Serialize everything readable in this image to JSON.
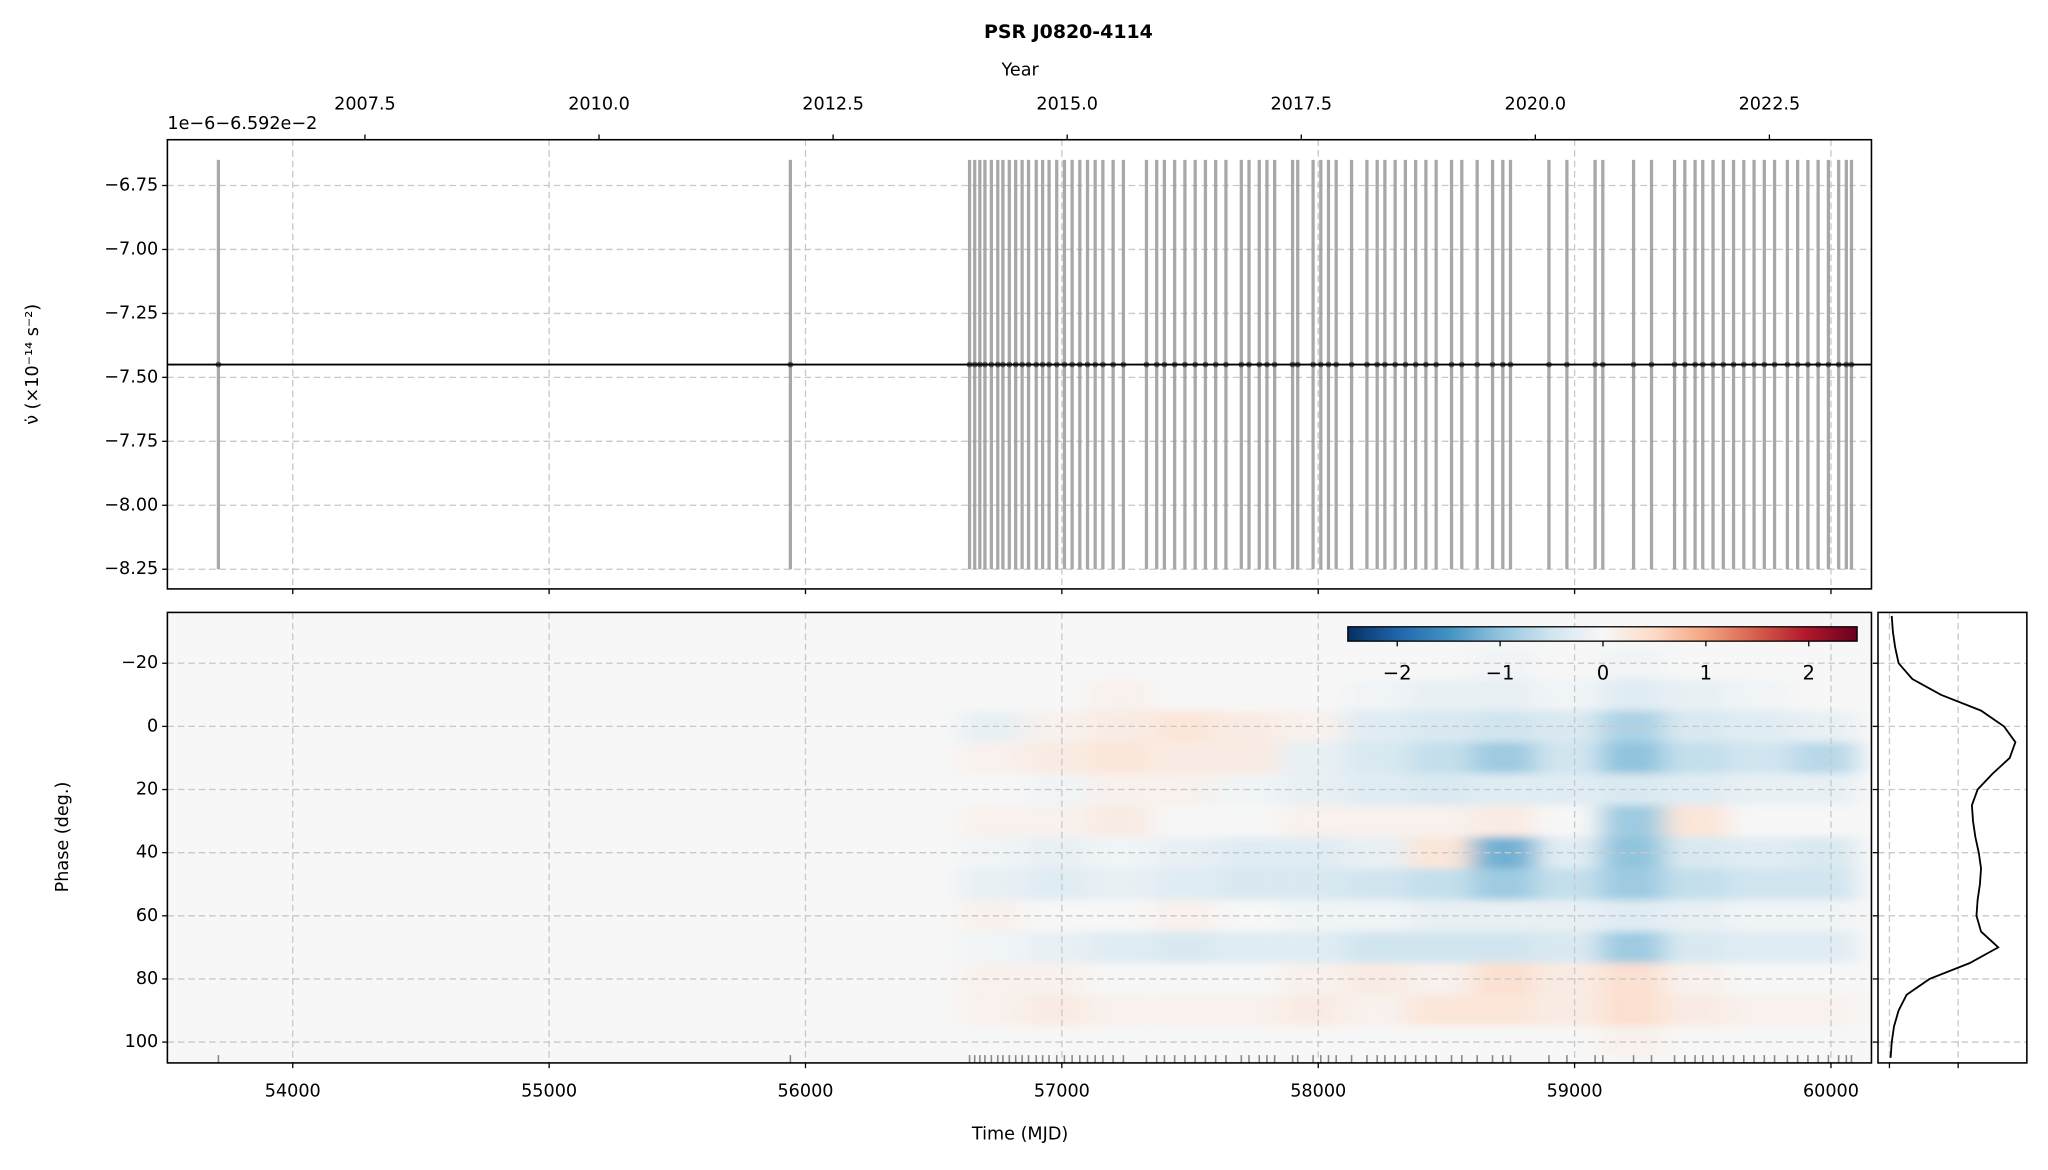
{
  "chart_data": [
    {
      "type": "errorbar",
      "title": "PSR J0820-4114",
      "x2label": "Year",
      "x2lim": [
        2005.39,
        2023.59
      ],
      "x2ticks": [
        2007.5,
        2010.0,
        2012.5,
        2015.0,
        2017.5,
        2020.0,
        2022.5
      ],
      "offset_text": "1e−6−6.592e−2",
      "ylabel": "ν̇ (×10⁻¹⁴ s⁻²)",
      "xlim": [
        53511,
        60158
      ],
      "xticks": [
        54000,
        55000,
        56000,
        57000,
        58000,
        59000,
        60000
      ],
      "ylim": [
        -8.327,
        -6.571
      ],
      "yticks": [
        {
          "value": -6.75,
          "label": "−6.75"
        },
        {
          "value": -7.0,
          "label": "−7.00"
        },
        {
          "value": -7.25,
          "label": "−7.25"
        },
        {
          "value": -7.5,
          "label": "−7.50"
        },
        {
          "value": -7.75,
          "label": "−7.75"
        },
        {
          "value": -8.0,
          "label": "−8.00"
        },
        {
          "value": -8.25,
          "label": "−8.25"
        }
      ],
      "grid": true,
      "color": "#999999",
      "fit": -7.45,
      "fit_color": "#000000",
      "x": [
        53710,
        55941,
        56640,
        56660,
        56680,
        56700,
        56725,
        56750,
        56770,
        56795,
        56820,
        56845,
        56870,
        56900,
        56925,
        56950,
        56980,
        57010,
        57040,
        57070,
        57100,
        57130,
        57160,
        57200,
        57240,
        57330,
        57370,
        57400,
        57440,
        57480,
        57520,
        57560,
        57600,
        57640,
        57700,
        57730,
        57770,
        57800,
        57830,
        57900,
        57920,
        57980,
        58010,
        58040,
        58070,
        58130,
        58190,
        58230,
        58260,
        58300,
        58340,
        58380,
        58420,
        58460,
        58520,
        58560,
        58620,
        58680,
        58720,
        58750,
        58900,
        58970,
        59080,
        59110,
        59230,
        59300,
        59390,
        59430,
        59470,
        59500,
        59540,
        59580,
        59620,
        59660,
        59700,
        59740,
        59780,
        59830,
        59870,
        59910,
        59950,
        59990,
        60030,
        60060,
        60080
      ],
      "values": [
        -7.45,
        -7.45,
        -7.45,
        -7.45,
        -7.45,
        -7.45,
        -7.45,
        -7.45,
        -7.45,
        -7.45,
        -7.45,
        -7.45,
        -7.45,
        -7.45,
        -7.45,
        -7.45,
        -7.45,
        -7.45,
        -7.45,
        -7.45,
        -7.45,
        -7.45,
        -7.45,
        -7.45,
        -7.45,
        -7.45,
        -7.45,
        -7.45,
        -7.45,
        -7.45,
        -7.45,
        -7.45,
        -7.45,
        -7.45,
        -7.45,
        -7.45,
        -7.45,
        -7.45,
        -7.45,
        -7.45,
        -7.45,
        -7.45,
        -7.45,
        -7.45,
        -7.45,
        -7.45,
        -7.45,
        -7.45,
        -7.45,
        -7.45,
        -7.45,
        -7.45,
        -7.45,
        -7.45,
        -7.45,
        -7.45,
        -7.45,
        -7.45,
        -7.45,
        -7.45,
        -7.45,
        -7.45,
        -7.45,
        -7.45,
        -7.45,
        -7.45,
        -7.45,
        -7.45,
        -7.45,
        -7.45,
        -7.45,
        -7.45,
        -7.45,
        -7.45,
        -7.45,
        -7.45,
        -7.45,
        -7.45,
        -7.45,
        -7.45,
        -7.45,
        -7.45,
        -7.45,
        -7.45,
        -7.45
      ],
      "errors": [
        0.8,
        0.8,
        0.8,
        0.8,
        0.8,
        0.8,
        0.8,
        0.8,
        0.8,
        0.8,
        0.8,
        0.8,
        0.8,
        0.8,
        0.8,
        0.8,
        0.8,
        0.8,
        0.8,
        0.8,
        0.8,
        0.8,
        0.8,
        0.8,
        0.8,
        0.8,
        0.8,
        0.8,
        0.8,
        0.8,
        0.8,
        0.8,
        0.8,
        0.8,
        0.8,
        0.8,
        0.8,
        0.8,
        0.8,
        0.8,
        0.8,
        0.8,
        0.8,
        0.8,
        0.8,
        0.8,
        0.8,
        0.8,
        0.8,
        0.8,
        0.8,
        0.8,
        0.8,
        0.8,
        0.8,
        0.8,
        0.8,
        0.8,
        0.8,
        0.8,
        0.8,
        0.8,
        0.8,
        0.8,
        0.8,
        0.8,
        0.8,
        0.8,
        0.8,
        0.8,
        0.8,
        0.8,
        0.8,
        0.8,
        0.8,
        0.8,
        0.8,
        0.8,
        0.8,
        0.8,
        0.8,
        0.8,
        0.8,
        0.8,
        0.8
      ]
    },
    {
      "type": "heatmap",
      "xlabel": "Time (MJD)",
      "ylabel": "Phase (deg.)",
      "xlim": [
        53511,
        60158
      ],
      "xticks": [
        54000,
        55000,
        56000,
        57000,
        58000,
        59000,
        60000
      ],
      "ylim": [
        106.6,
        -36.1
      ],
      "yticks": [
        {
          "value": -20,
          "label": "−20"
        },
        0,
        20,
        40,
        60,
        80,
        100
      ],
      "grid": true,
      "colormap": "RdBu_r",
      "clim": [
        -2.48,
        2.47
      ],
      "colorbar_ticks": [
        {
          "value": -2,
          "label": "−2"
        },
        {
          "value": -1,
          "label": "−1"
        },
        0,
        1,
        2
      ],
      "x_edges": [
        56600,
        56850,
        57100,
        57350,
        57600,
        57850,
        58100,
        58350,
        58600,
        58850,
        59100,
        59350,
        59600,
        59850,
        60100
      ],
      "y_edges": [
        -35,
        -25,
        -15,
        -5,
        5,
        15,
        25,
        35,
        45,
        55,
        65,
        75,
        85,
        95,
        105
      ],
      "z": [
        [
          0,
          0,
          0,
          0,
          0,
          0,
          0,
          0,
          0,
          0,
          0,
          0,
          0,
          0
        ],
        [
          0,
          0,
          0,
          0,
          0,
          0,
          0,
          0,
          -0.1,
          0,
          -0.1,
          0,
          0,
          0
        ],
        [
          0,
          0,
          0.1,
          0,
          0,
          0,
          -0.1,
          -0.2,
          -0.2,
          -0.1,
          -0.3,
          -0.2,
          -0.1,
          0
        ],
        [
          -0.2,
          0.1,
          0.2,
          0.3,
          0.2,
          0.1,
          -0.3,
          -0.4,
          -0.5,
          -0.4,
          -0.8,
          -0.4,
          -0.3,
          -0.2
        ],
        [
          0.1,
          0.2,
          0.3,
          0.2,
          0.2,
          -0.2,
          -0.4,
          -0.6,
          -0.9,
          -0.5,
          -1.0,
          -0.6,
          -0.5,
          -0.7
        ],
        [
          0,
          -0.1,
          0.1,
          0.1,
          -0.1,
          -0.2,
          -0.3,
          -0.4,
          -0.3,
          -0.3,
          -0.4,
          -0.3,
          -0.2,
          -0.2
        ],
        [
          0.1,
          0.1,
          0.2,
          0,
          0,
          0.1,
          0.1,
          0.1,
          0.2,
          0,
          -0.9,
          0.3,
          0,
          0
        ],
        [
          -0.1,
          -0.2,
          -0.1,
          -0.2,
          -0.3,
          -0.3,
          -0.2,
          0.3,
          -1.2,
          -0.3,
          -1.0,
          -0.4,
          -0.3,
          -0.4
        ],
        [
          -0.2,
          -0.3,
          -0.2,
          -0.3,
          -0.4,
          -0.4,
          -0.5,
          -0.6,
          -0.9,
          -0.6,
          -0.9,
          -0.6,
          -0.5,
          -0.5
        ],
        [
          0.1,
          0,
          0,
          0.1,
          0,
          -0.1,
          -0.1,
          -0.2,
          -0.2,
          -0.2,
          -0.3,
          -0.2,
          -0.1,
          -0.1
        ],
        [
          -0.1,
          -0.2,
          -0.3,
          -0.4,
          -0.3,
          -0.3,
          -0.5,
          -0.5,
          -0.5,
          -0.4,
          -0.9,
          -0.4,
          -0.3,
          -0.3
        ],
        [
          0.1,
          0.1,
          0,
          0,
          0,
          0.1,
          0.2,
          0.1,
          0.4,
          0.2,
          0.4,
          0.1,
          0,
          0
        ],
        [
          0.1,
          0.2,
          0.1,
          0.1,
          0.1,
          0.2,
          0.1,
          0.3,
          0.3,
          0.2,
          0.4,
          0.2,
          0.1,
          0.1
        ],
        [
          0,
          0,
          0,
          0,
          0,
          0,
          0,
          0,
          0,
          0,
          0.1,
          0,
          0,
          0
        ]
      ]
    },
    {
      "type": "line",
      "color": "#000000",
      "xlim": [
        -0.1,
        1.2
      ],
      "xticks": [
        0,
        0.6
      ],
      "ylim": [
        106.6,
        -36.1
      ],
      "yticks": [
        -20,
        0,
        20,
        40,
        60,
        80,
        100
      ],
      "grid": true,
      "y": [
        -35,
        -30,
        -25,
        -20,
        -15,
        -10,
        -5,
        0,
        5,
        10,
        15,
        20,
        25,
        30,
        35,
        40,
        45,
        50,
        55,
        60,
        65,
        70,
        75,
        80,
        85,
        90,
        95,
        100,
        105
      ],
      "values": [
        0.02,
        0.03,
        0.05,
        0.08,
        0.2,
        0.45,
        0.8,
        1.0,
        1.1,
        1.05,
        0.9,
        0.77,
        0.72,
        0.73,
        0.75,
        0.78,
        0.8,
        0.79,
        0.77,
        0.76,
        0.8,
        0.95,
        0.7,
        0.35,
        0.15,
        0.08,
        0.04,
        0.02,
        0.01
      ]
    }
  ]
}
